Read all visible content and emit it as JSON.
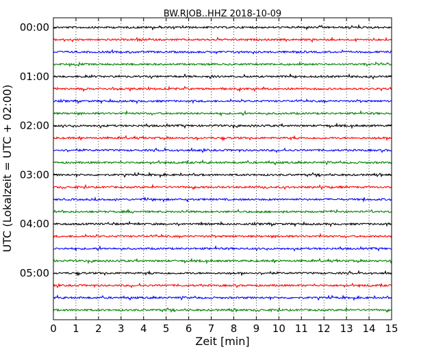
{
  "chart_data": {
    "type": "line",
    "title": "BW.RJOB..HHZ 2018-10-09",
    "xlabel": "Zeit  [min]",
    "ylabel": "UTC (Lokalzeit = UTC + 02:00)",
    "xlim": [
      0,
      15
    ],
    "x_ticks": [
      0,
      1,
      2,
      3,
      4,
      5,
      6,
      7,
      8,
      9,
      10,
      11,
      12,
      13,
      14,
      15
    ],
    "x_tick_labels": [
      "0",
      "1",
      "2",
      "3",
      "4",
      "5",
      "6",
      "7",
      "8",
      "9",
      "10",
      "11",
      "12",
      "13",
      "14",
      "15"
    ],
    "y_tick_labels": [
      "00:00",
      "01:00",
      "02:00",
      "03:00",
      "04:00",
      "05:00"
    ],
    "vertical_grid": "dotted",
    "trace_colors": [
      "#000000",
      "#ff0000",
      "#0000ff",
      "#008000"
    ],
    "trace_start_times": [
      "00:00",
      "00:15",
      "00:30",
      "00:45",
      "01:00",
      "01:15",
      "01:30",
      "01:45",
      "02:00",
      "02:15",
      "02:30",
      "02:45",
      "03:00",
      "03:15",
      "03:30",
      "03:45",
      "04:00",
      "04:15",
      "04:30",
      "04:45",
      "05:00",
      "05:15",
      "05:30",
      "05:45"
    ]
  }
}
